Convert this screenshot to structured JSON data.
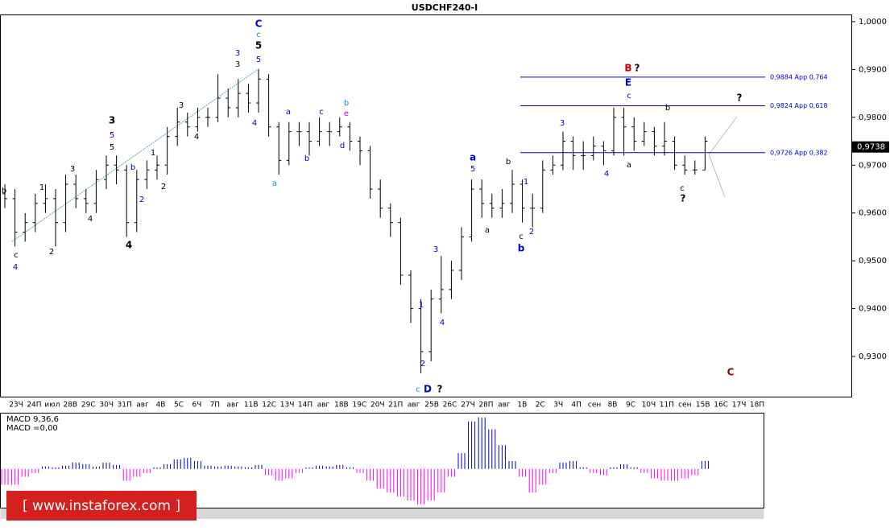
{
  "chart_data": {
    "type": "ohlc",
    "title": "USDCHF240-I",
    "ylim": [
      0.9216,
      1.0015
    ],
    "yticks": [
      {
        "value": 1.0,
        "label": "1,0000"
      },
      {
        "value": 0.99,
        "label": "0,9900"
      },
      {
        "value": 0.98,
        "label": "0,9800"
      },
      {
        "value": 0.97,
        "label": "0,9700"
      },
      {
        "value": 0.96,
        "label": "0,9600"
      },
      {
        "value": 0.95,
        "label": "0,9500"
      },
      {
        "value": 0.94,
        "label": "0,9400"
      },
      {
        "value": 0.93,
        "label": "0,9300"
      }
    ],
    "current_price": {
      "value": 0.9738,
      "label": "0,9738"
    },
    "bar_color": "#000000",
    "bars": [
      [
        0.964,
        0.966,
        0.961,
        0.963
      ],
      [
        0.963,
        0.965,
        0.953,
        0.956
      ],
      [
        0.956,
        0.96,
        0.954,
        0.958
      ],
      [
        0.958,
        0.964,
        0.956,
        0.962
      ],
      [
        0.962,
        0.966,
        0.96,
        0.963
      ],
      [
        0.963,
        0.965,
        0.953,
        0.958
      ],
      [
        0.958,
        0.968,
        0.956,
        0.966
      ],
      [
        0.966,
        0.968,
        0.961,
        0.963
      ],
      [
        0.963,
        0.965,
        0.96,
        0.962
      ],
      [
        0.962,
        0.969,
        0.96,
        0.967
      ],
      [
        0.967,
        0.972,
        0.965,
        0.97
      ],
      [
        0.97,
        0.972,
        0.966,
        0.969
      ],
      [
        0.969,
        0.97,
        0.955,
        0.958
      ],
      [
        0.958,
        0.969,
        0.956,
        0.967
      ],
      [
        0.967,
        0.971,
        0.965,
        0.969
      ],
      [
        0.969,
        0.972,
        0.967,
        0.97
      ],
      [
        0.97,
        0.978,
        0.968,
        0.976
      ],
      [
        0.976,
        0.982,
        0.974,
        0.979
      ],
      [
        0.979,
        0.981,
        0.976,
        0.978
      ],
      [
        0.978,
        0.982,
        0.977,
        0.98
      ],
      [
        0.98,
        0.982,
        0.978,
        0.98
      ],
      [
        0.98,
        0.989,
        0.979,
        0.984
      ],
      [
        0.984,
        0.986,
        0.98,
        0.982
      ],
      [
        0.982,
        0.988,
        0.98,
        0.985
      ],
      [
        0.985,
        0.987,
        0.981,
        0.983
      ],
      [
        0.983,
        0.99,
        0.981,
        0.988
      ],
      [
        0.988,
        0.989,
        0.976,
        0.978
      ],
      [
        0.978,
        0.979,
        0.968,
        0.971
      ],
      [
        0.971,
        0.979,
        0.97,
        0.977
      ],
      [
        0.977,
        0.979,
        0.974,
        0.977
      ],
      [
        0.977,
        0.979,
        0.972,
        0.975
      ],
      [
        0.975,
        0.98,
        0.974,
        0.977
      ],
      [
        0.977,
        0.979,
        0.974,
        0.977
      ],
      [
        0.977,
        0.98,
        0.976,
        0.978
      ],
      [
        0.978,
        0.979,
        0.973,
        0.975
      ],
      [
        0.975,
        0.976,
        0.97,
        0.973
      ],
      [
        0.973,
        0.974,
        0.963,
        0.965
      ],
      [
        0.965,
        0.967,
        0.959,
        0.961
      ],
      [
        0.961,
        0.962,
        0.955,
        0.958
      ],
      [
        0.958,
        0.959,
        0.945,
        0.947
      ],
      [
        0.947,
        0.948,
        0.937,
        0.94
      ],
      [
        0.94,
        0.942,
        0.9265,
        0.931
      ],
      [
        0.931,
        0.944,
        0.929,
        0.942
      ],
      [
        0.942,
        0.951,
        0.939,
        0.944
      ],
      [
        0.944,
        0.95,
        0.942,
        0.948
      ],
      [
        0.948,
        0.957,
        0.946,
        0.955
      ],
      [
        0.955,
        0.967,
        0.954,
        0.965
      ],
      [
        0.965,
        0.967,
        0.959,
        0.962
      ],
      [
        0.962,
        0.964,
        0.959,
        0.961
      ],
      [
        0.961,
        0.965,
        0.959,
        0.962
      ],
      [
        0.962,
        0.969,
        0.96,
        0.966
      ],
      [
        0.966,
        0.967,
        0.958,
        0.961
      ],
      [
        0.961,
        0.964,
        0.957,
        0.961
      ],
      [
        0.961,
        0.971,
        0.96,
        0.969
      ],
      [
        0.969,
        0.972,
        0.968,
        0.97
      ],
      [
        0.97,
        0.977,
        0.969,
        0.975
      ],
      [
        0.975,
        0.976,
        0.969,
        0.972
      ],
      [
        0.972,
        0.975,
        0.969,
        0.972
      ],
      [
        0.972,
        0.976,
        0.971,
        0.974
      ],
      [
        0.974,
        0.975,
        0.97,
        0.973
      ],
      [
        0.973,
        0.982,
        0.972,
        0.98
      ],
      [
        0.98,
        0.982,
        0.972,
        0.978
      ],
      [
        0.978,
        0.98,
        0.973,
        0.975
      ],
      [
        0.975,
        0.979,
        0.974,
        0.977
      ],
      [
        0.977,
        0.978,
        0.972,
        0.974
      ],
      [
        0.974,
        0.979,
        0.972,
        0.975
      ],
      [
        0.975,
        0.976,
        0.969,
        0.97
      ],
      [
        0.97,
        0.972,
        0.968,
        0.969
      ],
      [
        0.969,
        0.971,
        0.968,
        0.969
      ],
      [
        0.969,
        0.976,
        0.969,
        0.975
      ]
    ],
    "categories": [
      "23Ч",
      "24П",
      "июл",
      "28В",
      "29С",
      "30Ч",
      "31П",
      "авг",
      "4В",
      "5С",
      "6Ч",
      "7П",
      "авг",
      "11В",
      "12С",
      "13Ч",
      "14П",
      "авг",
      "18В",
      "19С",
      "20Ч",
      "21П",
      "авг",
      "25В",
      "26С",
      "27Ч",
      "28П",
      "авг",
      "1В",
      "2С",
      "3Ч",
      "4П",
      "сен",
      "8В",
      "9С",
      "10Ч",
      "11П",
      "сен",
      "15В",
      "16С",
      "17Ч",
      "18П"
    ],
    "levels": [
      {
        "value": 0.9884,
        "label": "0,9884 Арр 0,764"
      },
      {
        "value": 0.9824,
        "label": "0,9824 Арр 0,618"
      },
      {
        "value": 0.9726,
        "label": "0,9726 Арр 0,382"
      }
    ],
    "level_color": "#0000cc",
    "wave_labels": [
      {
        "text": "b",
        "color": "#000000"
      },
      {
        "text": "c",
        "color": "#000000"
      },
      {
        "text": "4",
        "color": "#0000cc"
      },
      {
        "text": "1",
        "color": "#000000"
      },
      {
        "text": "2",
        "color": "#000000"
      },
      {
        "text": "3",
        "color": "#000000"
      },
      {
        "text": "4",
        "color": "#000000"
      },
      {
        "text": "3",
        "color": "#000000"
      },
      {
        "text": "5",
        "color": "#0000cc"
      },
      {
        "text": "5",
        "color": "#000000"
      },
      {
        "text": "b",
        "color": "#0000cc"
      },
      {
        "text": "1",
        "color": "#000000"
      },
      {
        "text": "2",
        "color": "#0000cc"
      },
      {
        "text": "2",
        "color": "#000000"
      },
      {
        "text": "4",
        "color": "#000000"
      },
      {
        "text": "3",
        "color": "#000000"
      },
      {
        "text": "4",
        "color": "#000000"
      },
      {
        "text": "3",
        "color": "#0000cc"
      },
      {
        "text": "3",
        "color": "#000000"
      },
      {
        "text": "4",
        "color": "#0000cc"
      },
      {
        "text": "C",
        "color": "#0000cc"
      },
      {
        "text": "c",
        "color": "#0099cc"
      },
      {
        "text": "5",
        "color": "#000000"
      },
      {
        "text": "5",
        "color": "#0000cc"
      },
      {
        "text": "a",
        "color": "#0099cc"
      },
      {
        "text": "a",
        "color": "#0000cc"
      },
      {
        "text": "b",
        "color": "#0000cc"
      },
      {
        "text": "c",
        "color": "#0000cc"
      },
      {
        "text": "b",
        "color": "#0099cc"
      },
      {
        "text": "e",
        "color": "#cc00cc"
      },
      {
        "text": "d",
        "color": "#0000cc"
      },
      {
        "text": "1",
        "color": "#0000cc"
      },
      {
        "text": "2",
        "color": "#0000cc"
      },
      {
        "text": "3",
        "color": "#0000cc"
      },
      {
        "text": "4",
        "color": "#0000cc"
      },
      {
        "text": "c",
        "color": "#0099cc"
      },
      {
        "text": "D",
        "color": "#0000cc"
      },
      {
        "text": "?",
        "color": "#000000"
      },
      {
        "text": "a",
        "color": "#0000cc"
      },
      {
        "text": "5",
        "color": "#0000cc"
      },
      {
        "text": "b",
        "color": "#000000"
      },
      {
        "text": "a",
        "color": "#000000"
      },
      {
        "text": "1",
        "color": "#0000cc"
      },
      {
        "text": "2",
        "color": "#0000cc"
      },
      {
        "text": "c",
        "color": "#000000"
      },
      {
        "text": "b",
        "color": "#0000cc"
      },
      {
        "text": "3",
        "color": "#0000cc"
      },
      {
        "text": "4",
        "color": "#0000cc"
      },
      {
        "text": "B",
        "color": "#cc0000"
      },
      {
        "text": "?",
        "color": "#000000"
      },
      {
        "text": "E",
        "color": "#0000cc"
      },
      {
        "text": "c",
        "color": "#0000cc"
      },
      {
        "text": "a",
        "color": "#000000"
      },
      {
        "text": "b",
        "color": "#000000"
      },
      {
        "text": "c",
        "color": "#000000"
      },
      {
        "text": "?",
        "color": "#000000"
      },
      {
        "text": "?",
        "color": "#000000"
      },
      {
        "text": "C",
        "color": "#990000"
      }
    ],
    "macd": {
      "title": "MACD 9,36,6",
      "value_label": "MACD =0,00",
      "ylim": [
        -0.0048,
        0.007
      ],
      "up_color": "#0000cc",
      "down_color": "#ff00ff",
      "values": [
        -0.002,
        -0.002,
        -0.001,
        -0.0005,
        0.0003,
        0.0002,
        0.0004,
        0.0008,
        0.0006,
        0.0003,
        0.0008,
        0.0005,
        -0.0015,
        -0.001,
        -0.0005,
        0.0002,
        0.0006,
        0.0012,
        0.0014,
        0.001,
        0.0004,
        0.0003,
        0.0004,
        0.0003,
        0.0002,
        0.0005,
        -0.0008,
        -0.0015,
        -0.0012,
        -0.0005,
        0.0002,
        0.0004,
        0.0003,
        0.0005,
        0.0002,
        -0.0005,
        -0.0015,
        -0.0025,
        -0.003,
        -0.0035,
        -0.004,
        -0.0045,
        -0.004,
        -0.003,
        -0.001,
        0.002,
        0.006,
        0.0065,
        0.005,
        0.003,
        0.001,
        -0.001,
        -0.003,
        -0.002,
        -0.0005,
        0.0008,
        0.001,
        0.0002,
        -0.0005,
        -0.0008,
        0.0002,
        0.0006,
        0.0002,
        -0.0005,
        -0.0012,
        -0.0015,
        -0.0015,
        -0.0012,
        -0.0008,
        0.001
      ]
    },
    "watermark": "[ www.instaforex.com ]"
  }
}
